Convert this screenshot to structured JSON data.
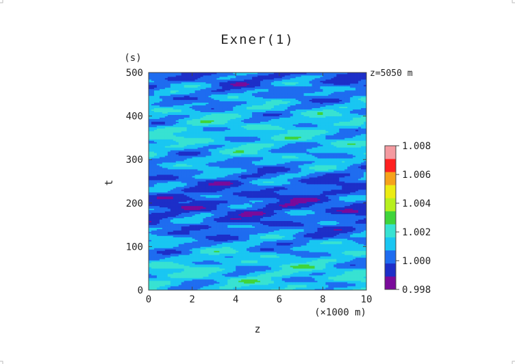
{
  "chart_data": {
    "type": "heatmap",
    "title": "Exner(1)",
    "xlabel": "z",
    "x_unit": "(×1000 m)",
    "ylabel": "t",
    "y_unit": "(s)",
    "annotation": "z=5050 m",
    "xlim": [
      0,
      10
    ],
    "ylim": [
      0,
      500
    ],
    "x_ticks": [
      "0",
      "2",
      "4",
      "6",
      "8",
      "10"
    ],
    "y_ticks": [
      "0",
      "100",
      "200",
      "300",
      "400",
      "500"
    ],
    "colorbar": {
      "min": 0.998,
      "max": 1.008,
      "step": 0.001,
      "tick_labels": [
        "0.998",
        "1.000",
        "1.002",
        "1.004",
        "1.006",
        "1.008"
      ],
      "colors": [
        "#7a0a9a",
        "#1d2ec8",
        "#1e6cf0",
        "#19c6f2",
        "#37e2d2",
        "#3fd43a",
        "#b7f01e",
        "#ecec12",
        "#f6a21a",
        "#ff2020",
        "#f49aa0"
      ]
    }
  }
}
